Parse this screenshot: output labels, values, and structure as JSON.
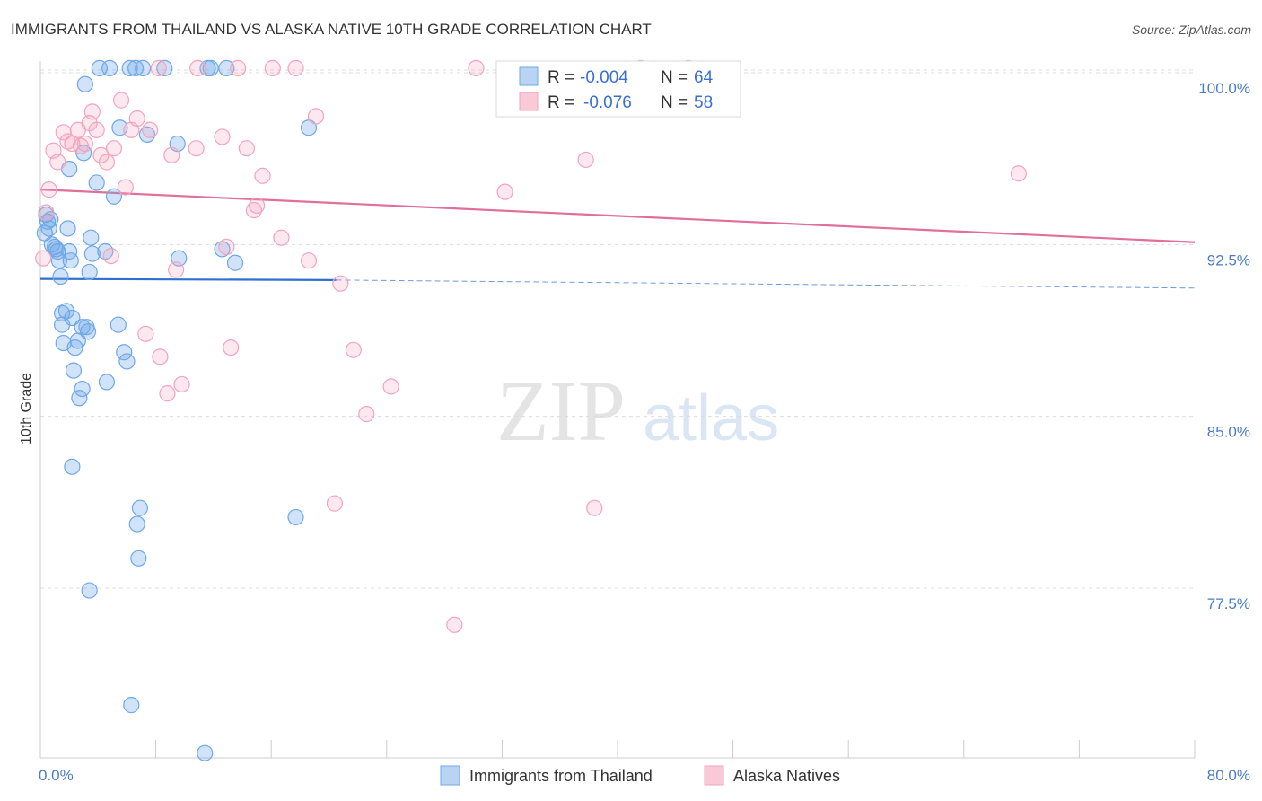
{
  "title": "IMMIGRANTS FROM THAILAND VS ALASKA NATIVE 10TH GRADE CORRELATION CHART",
  "source": "Source: ZipAtlas.com",
  "watermark": {
    "zip": "ZIP",
    "atlas": "atlas"
  },
  "colors": {
    "blue": "#6fa8e8",
    "blue_line": "#2f6fcf",
    "pink": "#f2a4bd",
    "pink_line": "#e0709a",
    "grid": "#dcdcdc",
    "tick": "#4a7cc8"
  },
  "legend_box": {
    "rows": [
      {
        "r_label": "R =",
        "r_value": "-0.004",
        "n_label": "N =",
        "n_value": "64"
      },
      {
        "r_label": "R =",
        "r_value": "-0.076",
        "n_label": "N =",
        "n_value": "58"
      }
    ]
  },
  "bottom_legend": [
    {
      "label": "Immigrants from Thailand"
    },
    {
      "label": "Alaska Natives"
    }
  ],
  "chart_data": {
    "type": "scatter",
    "title": "IMMIGRANTS FROM THAILAND VS ALASKA NATIVE 10TH GRADE CORRELATION CHART",
    "xlabel": "",
    "ylabel": "10th Grade",
    "xlim": [
      0,
      80
    ],
    "ylim": [
      71.0,
      101.0
    ],
    "x_tick_labels": [
      {
        "value": 0,
        "label": "0.0%"
      },
      {
        "value": 80,
        "label": "80.0%"
      }
    ],
    "y_tick_labels": [
      {
        "value": 100,
        "label": "100.0%"
      },
      {
        "value": 92.5,
        "label": "92.5%"
      },
      {
        "value": 85,
        "label": "85.0%"
      },
      {
        "value": 77.5,
        "label": "77.5%"
      }
    ],
    "x_minor_ticks": [
      0,
      8,
      16,
      24,
      32,
      40,
      48,
      56,
      64,
      72,
      80
    ],
    "series": [
      {
        "name": "Immigrants from Thailand",
        "color": "blue",
        "r": -0.004,
        "n": 64,
        "trend": {
          "x": [
            0,
            20.5
          ],
          "y": [
            91.0,
            90.95
          ],
          "dashed_to": [
            80,
            90.6
          ]
        },
        "points": [
          [
            0.4,
            93.8
          ],
          [
            0.5,
            93.5
          ],
          [
            0.6,
            93.2
          ],
          [
            0.8,
            92.5
          ],
          [
            1.0,
            92.4
          ],
          [
            1.2,
            92.2
          ],
          [
            0.3,
            93.0
          ],
          [
            1.3,
            91.8
          ],
          [
            1.4,
            91.1
          ],
          [
            1.5,
            89.5
          ],
          [
            1.5,
            89.0
          ],
          [
            1.6,
            88.2
          ],
          [
            1.8,
            89.6
          ],
          [
            1.9,
            93.2
          ],
          [
            2.0,
            92.2
          ],
          [
            2.1,
            91.8
          ],
          [
            2.2,
            89.3
          ],
          [
            2.3,
            87.0
          ],
          [
            2.4,
            88.0
          ],
          [
            2.6,
            88.3
          ],
          [
            2.7,
            85.8
          ],
          [
            2.9,
            86.2
          ],
          [
            2.9,
            88.9
          ],
          [
            3.0,
            96.5
          ],
          [
            3.1,
            99.5
          ],
          [
            3.2,
            88.9
          ],
          [
            3.3,
            88.7
          ],
          [
            3.4,
            91.3
          ],
          [
            3.5,
            92.8
          ],
          [
            3.9,
            95.2
          ],
          [
            4.1,
            100.2
          ],
          [
            4.5,
            92.2
          ],
          [
            4.6,
            86.5
          ],
          [
            4.8,
            100.2
          ],
          [
            5.1,
            94.6
          ],
          [
            5.4,
            89.0
          ],
          [
            5.5,
            97.6
          ],
          [
            5.8,
            87.8
          ],
          [
            6.0,
            87.4
          ],
          [
            6.2,
            100.2
          ],
          [
            6.6,
            100.2
          ],
          [
            6.7,
            80.3
          ],
          [
            6.8,
            78.8
          ],
          [
            6.9,
            81.0
          ],
          [
            7.1,
            100.2
          ],
          [
            7.4,
            97.3
          ],
          [
            8.6,
            100.2
          ],
          [
            9.5,
            96.9
          ],
          [
            9.6,
            91.9
          ],
          [
            11.6,
            100.2
          ],
          [
            11.8,
            100.2
          ],
          [
            12.6,
            92.3
          ],
          [
            12.9,
            100.2
          ],
          [
            13.5,
            91.7
          ],
          [
            17.7,
            80.6
          ],
          [
            18.6,
            97.6
          ],
          [
            3.4,
            77.4
          ],
          [
            6.3,
            72.4
          ],
          [
            11.4,
            70.3
          ],
          [
            2.2,
            82.8
          ],
          [
            0.7,
            93.6
          ],
          [
            1.1,
            92.3
          ],
          [
            3.6,
            92.1
          ],
          [
            2.0,
            95.8
          ]
        ]
      },
      {
        "name": "Alaska Natives",
        "color": "pink",
        "r": -0.076,
        "n": 58,
        "trend": {
          "x": [
            0,
            80
          ],
          "y": [
            94.9,
            92.6
          ]
        },
        "points": [
          [
            0.2,
            91.9
          ],
          [
            0.6,
            94.9
          ],
          [
            0.9,
            96.6
          ],
          [
            1.2,
            96.1
          ],
          [
            1.6,
            97.4
          ],
          [
            1.9,
            97.0
          ],
          [
            2.2,
            96.9
          ],
          [
            2.6,
            97.5
          ],
          [
            2.8,
            96.8
          ],
          [
            3.1,
            96.9
          ],
          [
            3.4,
            97.8
          ],
          [
            3.6,
            98.3
          ],
          [
            3.9,
            97.5
          ],
          [
            4.2,
            96.4
          ],
          [
            4.6,
            96.1
          ],
          [
            4.9,
            92.0
          ],
          [
            5.1,
            96.7
          ],
          [
            5.6,
            98.8
          ],
          [
            5.9,
            95.0
          ],
          [
            6.3,
            97.5
          ],
          [
            6.7,
            98.0
          ],
          [
            7.3,
            88.6
          ],
          [
            7.6,
            97.5
          ],
          [
            8.2,
            100.2
          ],
          [
            8.3,
            87.6
          ],
          [
            8.8,
            86.0
          ],
          [
            9.1,
            96.4
          ],
          [
            9.4,
            91.4
          ],
          [
            9.8,
            86.4
          ],
          [
            10.8,
            96.7
          ],
          [
            10.9,
            100.2
          ],
          [
            12.6,
            97.2
          ],
          [
            12.9,
            92.4
          ],
          [
            13.2,
            88.0
          ],
          [
            13.7,
            100.2
          ],
          [
            14.3,
            96.7
          ],
          [
            14.8,
            94.0
          ],
          [
            15.0,
            94.2
          ],
          [
            15.4,
            95.5
          ],
          [
            16.1,
            100.2
          ],
          [
            16.7,
            92.8
          ],
          [
            17.7,
            100.2
          ],
          [
            18.6,
            91.8
          ],
          [
            19.1,
            98.1
          ],
          [
            20.4,
            81.2
          ],
          [
            20.8,
            90.8
          ],
          [
            21.7,
            87.9
          ],
          [
            22.6,
            85.1
          ],
          [
            24.3,
            86.3
          ],
          [
            28.7,
            75.9
          ],
          [
            30.2,
            100.2
          ],
          [
            32.2,
            94.8
          ],
          [
            37.8,
            96.2
          ],
          [
            38.4,
            81.0
          ],
          [
            41.6,
            100.2
          ],
          [
            44.9,
            100.2
          ],
          [
            67.8,
            95.6
          ],
          [
            0.4,
            93.9
          ]
        ]
      }
    ]
  }
}
